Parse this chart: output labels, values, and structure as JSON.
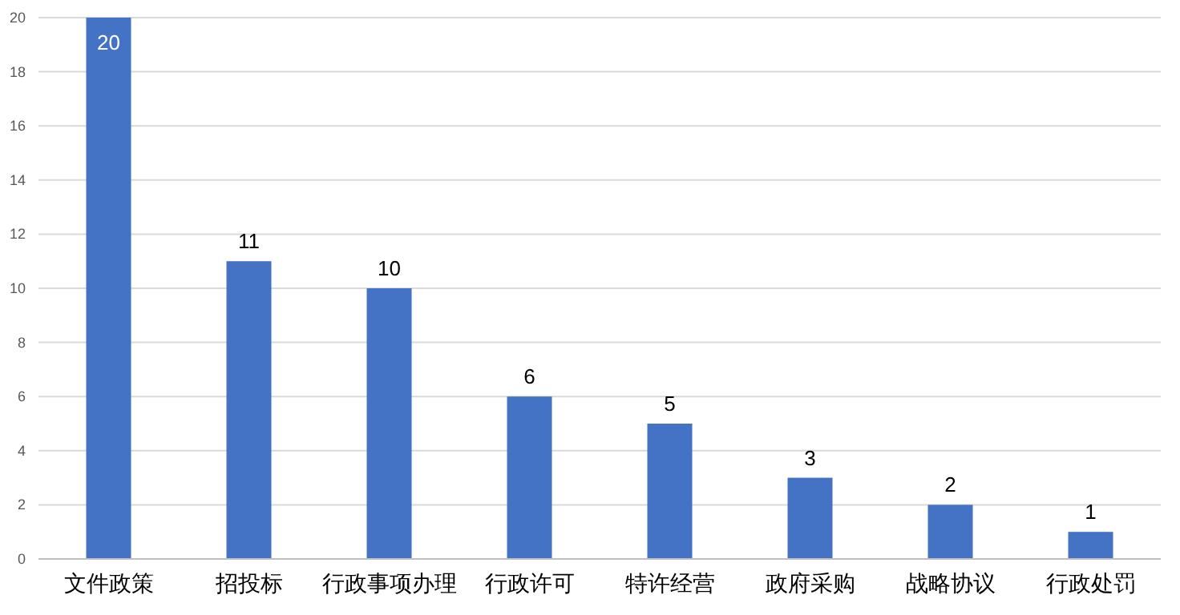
{
  "chart_data": {
    "type": "bar",
    "categories": [
      "文件政策",
      "招投标",
      "行政事项办理",
      "行政许可",
      "特许经营",
      "政府采购",
      "战略协议",
      "行政处罚"
    ],
    "values": [
      20,
      11,
      10,
      6,
      5,
      3,
      2,
      1
    ],
    "color": "#4472c4",
    "ylim": [
      0,
      20
    ],
    "yticks": [
      0,
      2,
      4,
      6,
      8,
      10,
      12,
      14,
      16,
      18,
      20
    ],
    "grid": "y",
    "data_labels": true
  }
}
